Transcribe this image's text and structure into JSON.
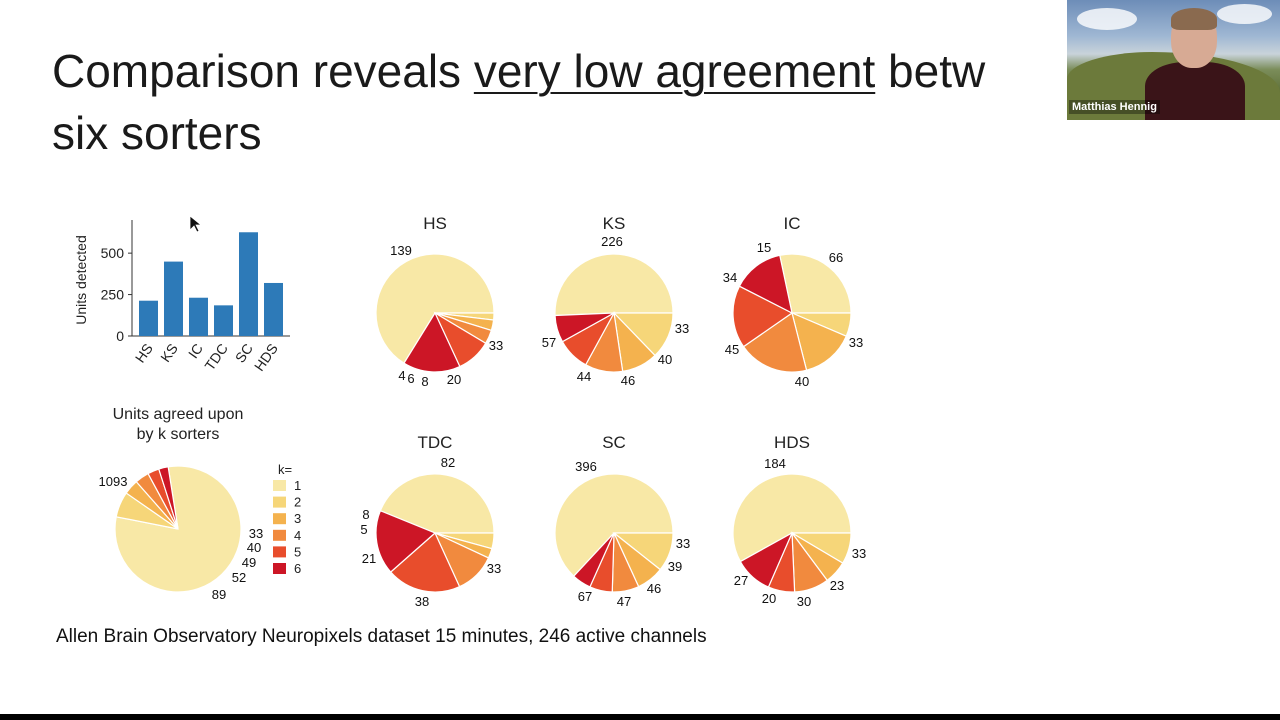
{
  "slide": {
    "title_part1": "Comparison reveals ",
    "title_underlined": "very low agreement",
    "title_part2": " betw",
    "title_line2": "six sorters",
    "caption": "Allen Brain Observatory Neuropixels dataset 15 minutes, 246 active channels"
  },
  "video": {
    "name": "Matthias Hennig"
  },
  "colors": {
    "k1": "#f8e8a6",
    "k2": "#f6d679",
    "k3": "#f4b24e",
    "k4": "#f18a3e",
    "k5": "#e84d2c",
    "k6": "#cc1626",
    "bar": "#2d7ab8"
  },
  "chart_data": [
    {
      "type": "bar",
      "categories": [
        "HS",
        "KS",
        "IC",
        "TDC",
        "SC",
        "HDS"
      ],
      "values": [
        213,
        449,
        231,
        185,
        626,
        320
      ],
      "ylabel": "Units detected",
      "yticks": [
        "0",
        "250",
        "500"
      ],
      "ylim": [
        0,
        700
      ]
    },
    {
      "type": "pie",
      "title": "Units agreed upon by k sorters",
      "legend_title": "k=",
      "legend": [
        "1",
        "2",
        "3",
        "4",
        "5",
        "6"
      ],
      "values": [
        1093,
        89,
        52,
        49,
        40,
        33
      ]
    },
    {
      "type": "pie",
      "title": "HS",
      "values": [
        139,
        4,
        6,
        8,
        20,
        33
      ]
    },
    {
      "type": "pie",
      "title": "KS",
      "values": [
        226,
        57,
        44,
        46,
        40,
        33
      ]
    },
    {
      "type": "pie",
      "title": "IC",
      "values": [
        66,
        15,
        34,
        45,
        40,
        33
      ]
    },
    {
      "type": "pie",
      "title": "TDC",
      "values": [
        82,
        8,
        5,
        21,
        38,
        33
      ]
    },
    {
      "type": "pie",
      "title": "SC",
      "values": [
        396,
        67,
        47,
        46,
        39,
        33
      ]
    },
    {
      "type": "pie",
      "title": "HDS",
      "values": [
        184,
        27,
        20,
        30,
        23,
        33
      ]
    }
  ]
}
